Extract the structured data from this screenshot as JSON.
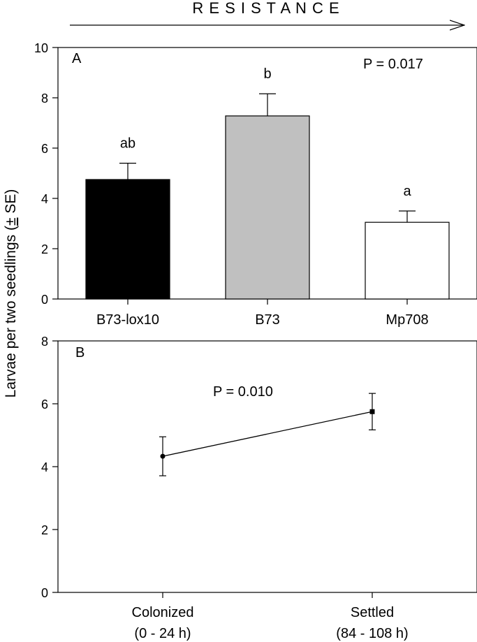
{
  "figure": {
    "header": "R E S I S T A N C E",
    "ylabel_main": "Larvae per two seedlings (",
    "ylabel_pm": "±",
    "ylabel_tail": " SE)"
  },
  "chart_data": [
    {
      "type": "bar",
      "panel_label": "A",
      "annotation": "P = 0.017",
      "categories": [
        "B73-lox10",
        "B73",
        "Mp708"
      ],
      "values": [
        4.75,
        7.28,
        3.05
      ],
      "errors": [
        0.65,
        0.88,
        0.45
      ],
      "letters": [
        "ab",
        "b",
        "a"
      ],
      "colors": [
        "#000000",
        "#c0c0c0",
        "#ffffff"
      ],
      "ylim": [
        0,
        10
      ],
      "yticks": [
        0,
        2,
        4,
        6,
        8,
        10
      ]
    },
    {
      "type": "line",
      "panel_label": "B",
      "annotation": "P = 0.010",
      "categories": [
        "Colonized",
        "Settled"
      ],
      "category_sublabels": [
        "(0 - 24 h)",
        "(84 - 108 h)"
      ],
      "values": [
        4.33,
        5.75
      ],
      "errors": [
        0.62,
        0.58
      ],
      "ylim": [
        0,
        8
      ],
      "yticks": [
        0,
        2,
        4,
        6,
        8
      ]
    }
  ]
}
